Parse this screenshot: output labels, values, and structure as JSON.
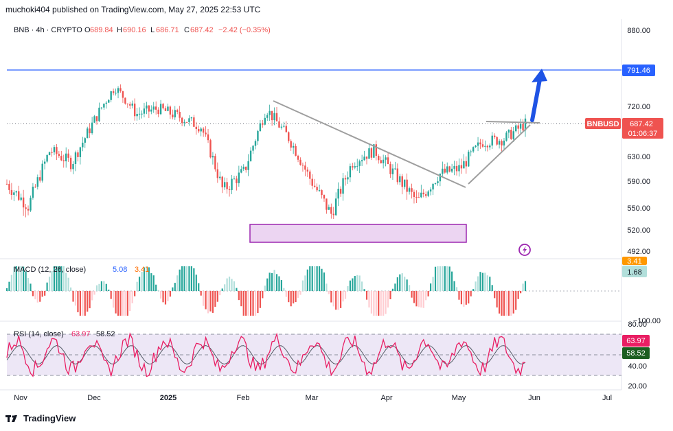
{
  "header": {
    "published": "muchoki404 published on TradingView.com, May 27, 2025 22:53 UTC"
  },
  "legend": {
    "symbol": "BNB · 4h · CRYPTO",
    "open_label": "O",
    "open": "689.84",
    "high_label": "H",
    "high": "690.16",
    "low_label": "L",
    "low": "686.71",
    "close_label": "C",
    "close": "687.42",
    "change": "−2.42 (−0.35%)"
  },
  "price_axis": {
    "ticks": [
      "880.00",
      "720.00",
      "630.00",
      "590.00",
      "550.00",
      "520.00",
      "492.00"
    ],
    "target_label": "791.46",
    "symbol_tag": "BNBUSD",
    "last_price": "687.42",
    "countdown": "01:06:37"
  },
  "macd": {
    "label": "MACD (12, 26, close)",
    "val1": "5.08",
    "val2": "3.41",
    "axis_tag1": "3.41",
    "axis_tag2": "1.68",
    "axis_low": "−100.00"
  },
  "rsi": {
    "label": "RSI (14, close)",
    "val1": "63.97",
    "val2": "58.52",
    "axis_tag1": "63.97",
    "axis_tag2": "58.52",
    "ticks": [
      "80.00",
      "40.00",
      "20.00"
    ]
  },
  "time_axis": {
    "ticks": [
      "Nov",
      "Dec",
      "2025",
      "Feb",
      "Mar",
      "Apr",
      "May",
      "Jun",
      "Jul"
    ]
  },
  "brand": {
    "name": "TradingView"
  },
  "colors": {
    "up": "#26a69a",
    "down": "#ef5350",
    "target_line": "#2962ff",
    "arrow": "#1e53e5",
    "box_fill": "#ecd5f2",
    "box_stroke": "#9c27b0",
    "trend": "#9e9e9e",
    "rsi_line": "#e91e63",
    "rsi_band": "#ede7f6"
  },
  "chart_data": {
    "type": "candlestick",
    "symbol": "BNBUSD",
    "timeframe": "4h",
    "x": [
      "Nov",
      "Dec",
      "2025",
      "Feb",
      "Mar",
      "Apr",
      "May",
      "Jun",
      "Jul"
    ],
    "close_path": [
      {
        "t": "Nov",
        "v": 585
      },
      {
        "t": "Nov",
        "v": 552
      },
      {
        "t": "Nov",
        "v": 640
      },
      {
        "t": "Nov",
        "v": 618
      },
      {
        "t": "Dec",
        "v": 690
      },
      {
        "t": "Dec",
        "v": 760
      },
      {
        "t": "Dec",
        "v": 705
      },
      {
        "t": "2025",
        "v": 715
      },
      {
        "t": "2025",
        "v": 700
      },
      {
        "t": "2025",
        "v": 682
      },
      {
        "t": "Feb",
        "v": 575
      },
      {
        "t": "Feb",
        "v": 605
      },
      {
        "t": "Feb",
        "v": 715
      },
      {
        "t": "Feb",
        "v": 665
      },
      {
        "t": "Mar",
        "v": 595
      },
      {
        "t": "Mar",
        "v": 540
      },
      {
        "t": "Mar",
        "v": 620
      },
      {
        "t": "Mar",
        "v": 640
      },
      {
        "t": "Apr",
        "v": 598
      },
      {
        "t": "Apr",
        "v": 558
      },
      {
        "t": "Apr",
        "v": 600
      },
      {
        "t": "May",
        "v": 610
      },
      {
        "t": "May",
        "v": 655
      },
      {
        "t": "May",
        "v": 660
      },
      {
        "t": "May",
        "v": 687.42
      }
    ],
    "annotations": {
      "target_level": 791.46,
      "support_zone": [
        507,
        530
      ],
      "triangle_apex": 687
    },
    "price_range": [
      492,
      880
    ],
    "rsi_range": [
      20,
      80
    ],
    "rsi_levels": [
      70,
      50,
      30
    ]
  }
}
